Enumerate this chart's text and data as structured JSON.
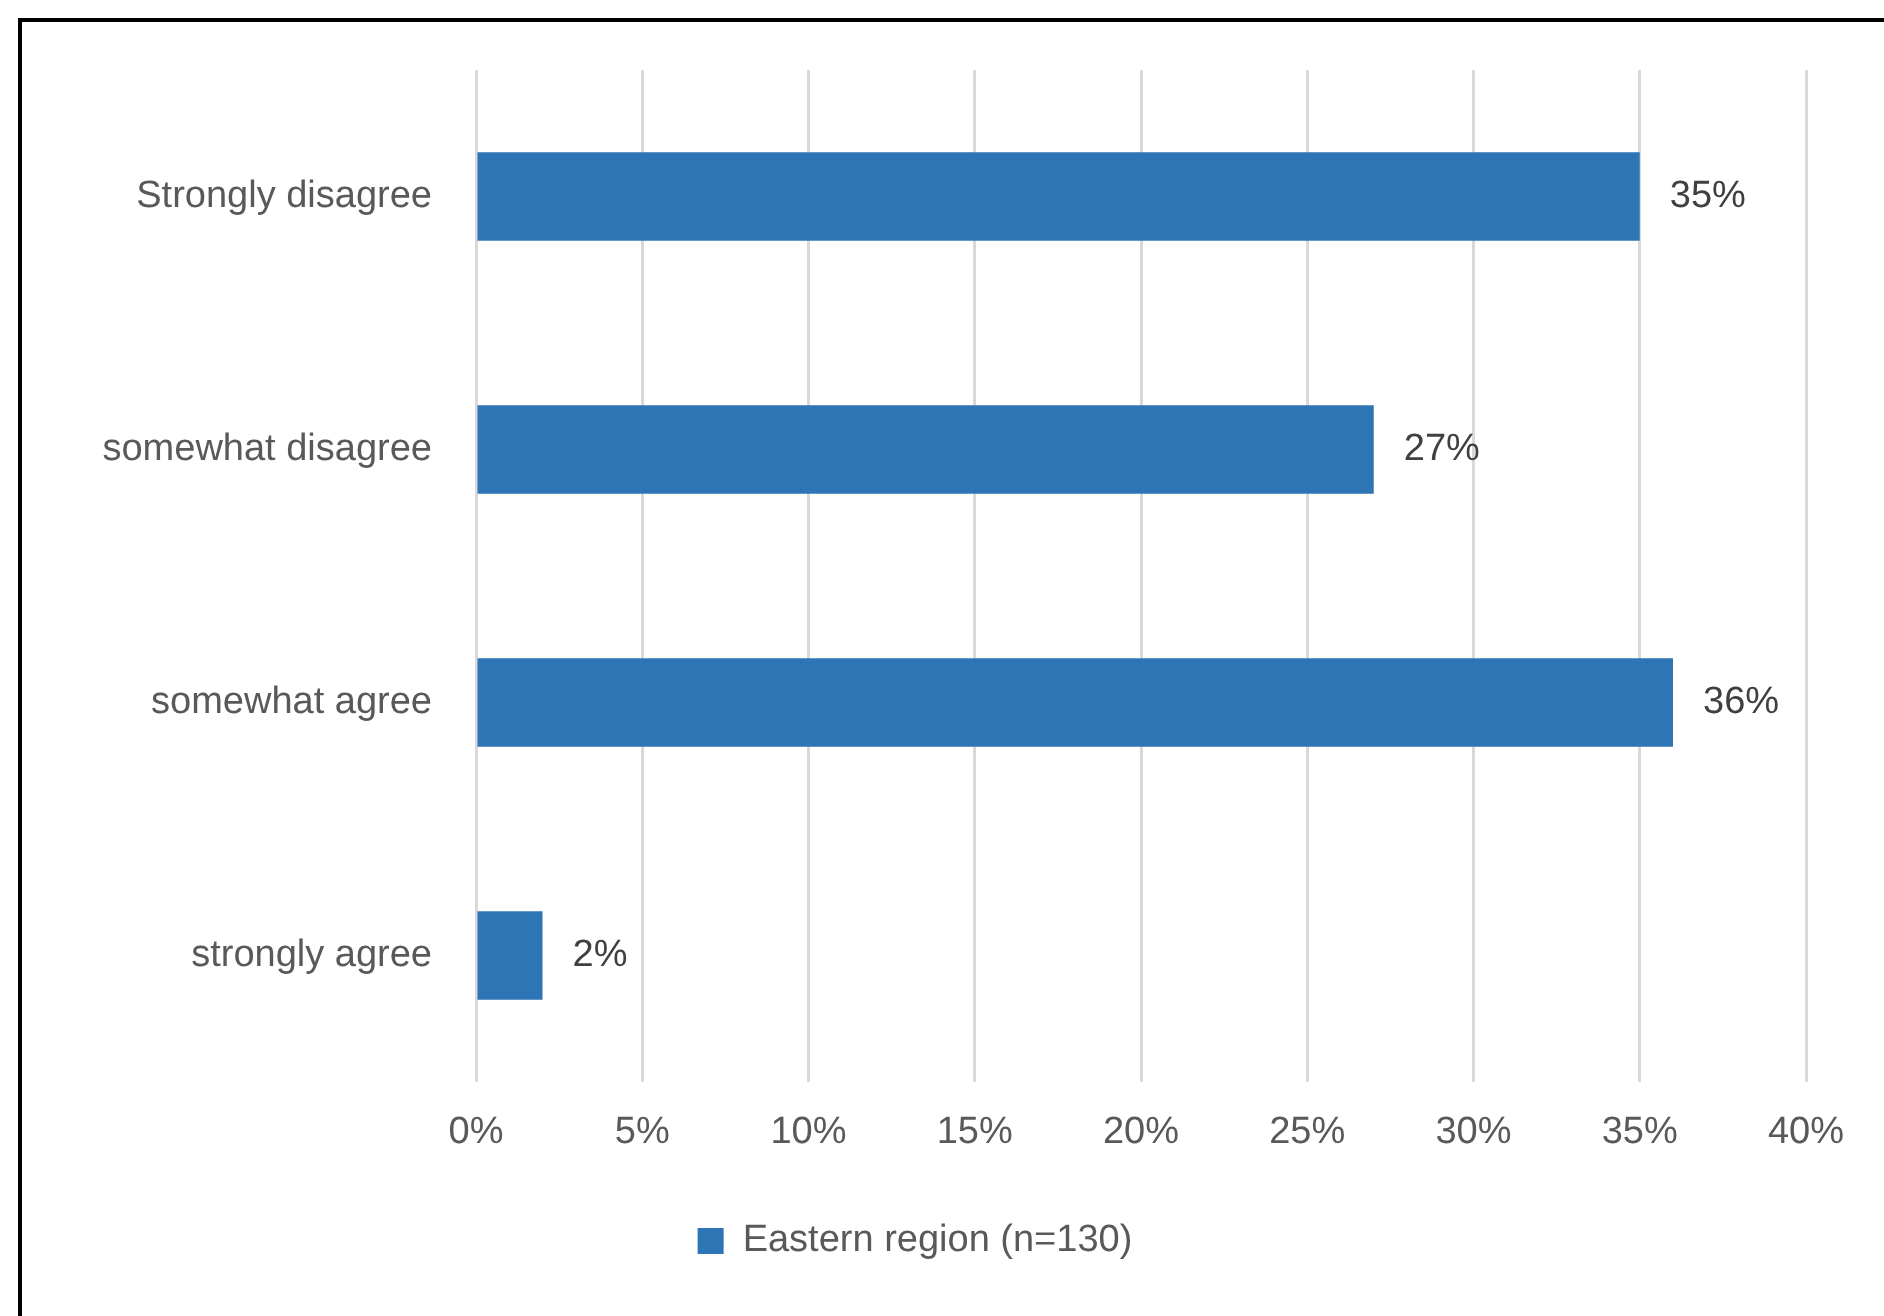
{
  "chart_data": {
    "type": "bar",
    "orientation": "horizontal",
    "categories": [
      "Strongly disagree",
      "somewhat disagree",
      "somewhat agree",
      "strongly agree"
    ],
    "series": [
      {
        "name": "Eastern region (n=130)",
        "color": "#2e75b6",
        "values": [
          35,
          27,
          36,
          2
        ],
        "value_labels": [
          "35%",
          "27%",
          "36%",
          "2%"
        ]
      }
    ],
    "xlim": [
      0,
      40
    ],
    "xticks": [
      {
        "value": 0,
        "label": "0%"
      },
      {
        "value": 5,
        "label": "5%"
      },
      {
        "value": 10,
        "label": "10%"
      },
      {
        "value": 15,
        "label": "15%"
      },
      {
        "value": 20,
        "label": "20%"
      },
      {
        "value": 25,
        "label": "25%"
      },
      {
        "value": 30,
        "label": "30%"
      },
      {
        "value": 35,
        "label": "35%"
      },
      {
        "value": 40,
        "label": "40%"
      }
    ],
    "grid": "x",
    "legend": "bottom"
  }
}
